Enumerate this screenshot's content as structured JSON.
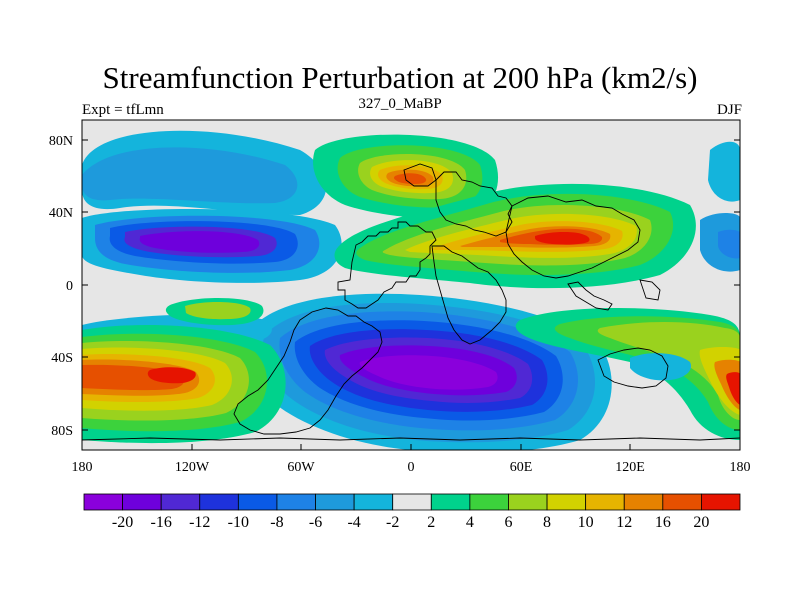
{
  "title": "Streamfunction Perturbation at 200 hPa (km2/s)",
  "left_string": "Expt = tfLmn",
  "center_string": "327_0_MaBP",
  "right_string": "DJF",
  "y_ticks": [
    "80N",
    "40N",
    "0",
    "40S",
    "80S"
  ],
  "x_ticks": [
    "180",
    "120W",
    "60W",
    "0",
    "60E",
    "120E",
    "180"
  ],
  "colorbar": {
    "labels": [
      "-20",
      "-16",
      "-12",
      "-10",
      "-8",
      "-6",
      "-4",
      "-2",
      "2",
      "4",
      "6",
      "8",
      "10",
      "12",
      "16",
      "20"
    ],
    "colors": [
      "#8a00dc",
      "#6e00dc",
      "#5028d4",
      "#1e32dc",
      "#0a5ae6",
      "#1e82e6",
      "#1e9adc",
      "#14b4dc",
      "#e6e6e6",
      "#00d28c",
      "#3cd23c",
      "#9ad21e",
      "#d2d200",
      "#e6b400",
      "#e68200",
      "#e65000",
      "#e61400"
    ]
  },
  "background_color": "#e6e6e6",
  "map_fill_scale": [
    {
      "level": -20,
      "color": "#8a00dc"
    },
    {
      "level": 20,
      "color": "#e61400"
    }
  ]
}
